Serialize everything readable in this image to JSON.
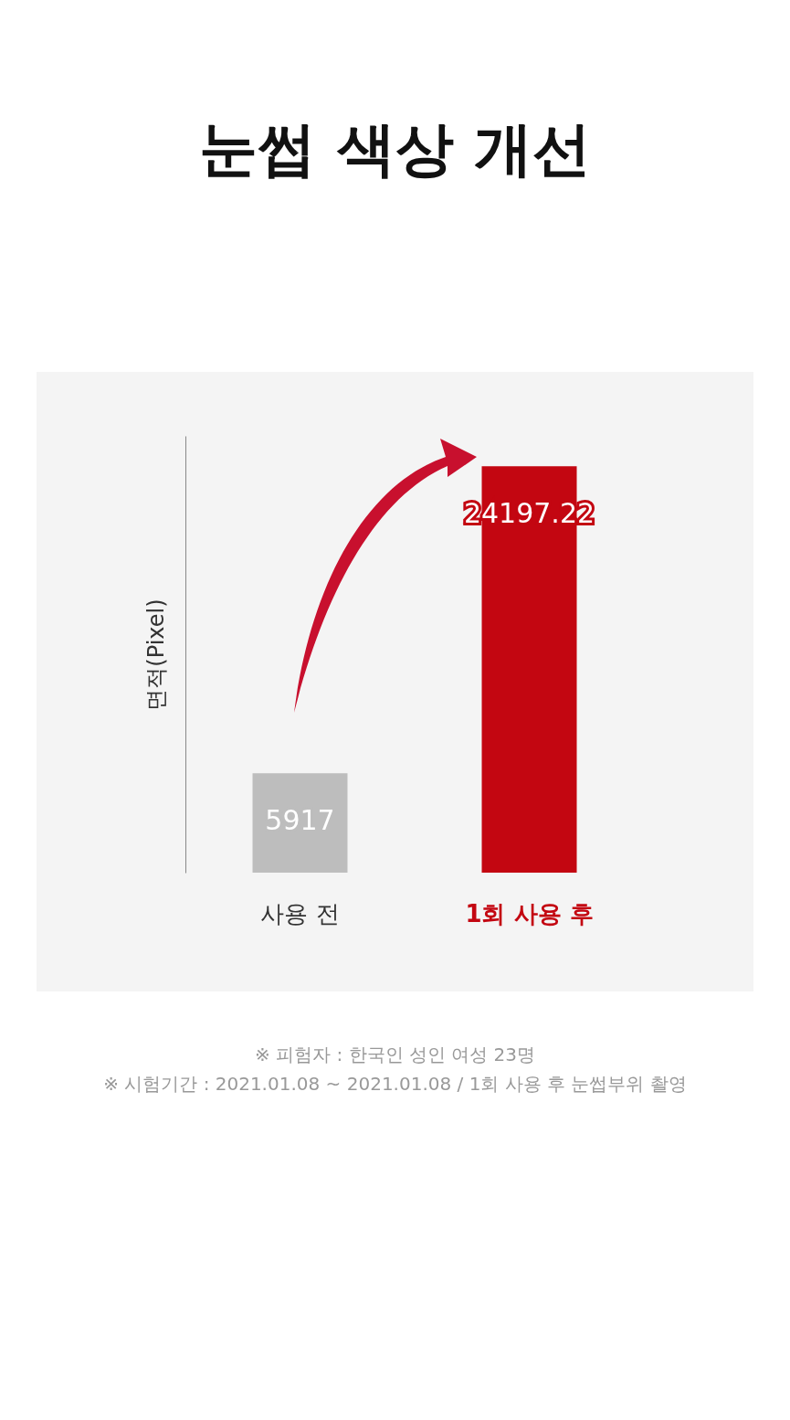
{
  "chart_data": {
    "type": "bar",
    "title": "눈썹 색상 개선",
    "ylabel": "면적(Pixel)",
    "categories": [
      "사용 전",
      "1회 사용 후"
    ],
    "values": [
      5917,
      24197.22
    ],
    "colors": [
      "#bdbdbd",
      "#c30611"
    ],
    "data_labels": true,
    "tick_labels": "x",
    "grid": false,
    "annotations": [
      "※ 피험자 : 한국인 성인 여성 23명",
      "※ 시험기간 : 2021.01.08 ~ 2021.01.08 / 1회 사용 후 눈썹부위 촬영"
    ]
  }
}
